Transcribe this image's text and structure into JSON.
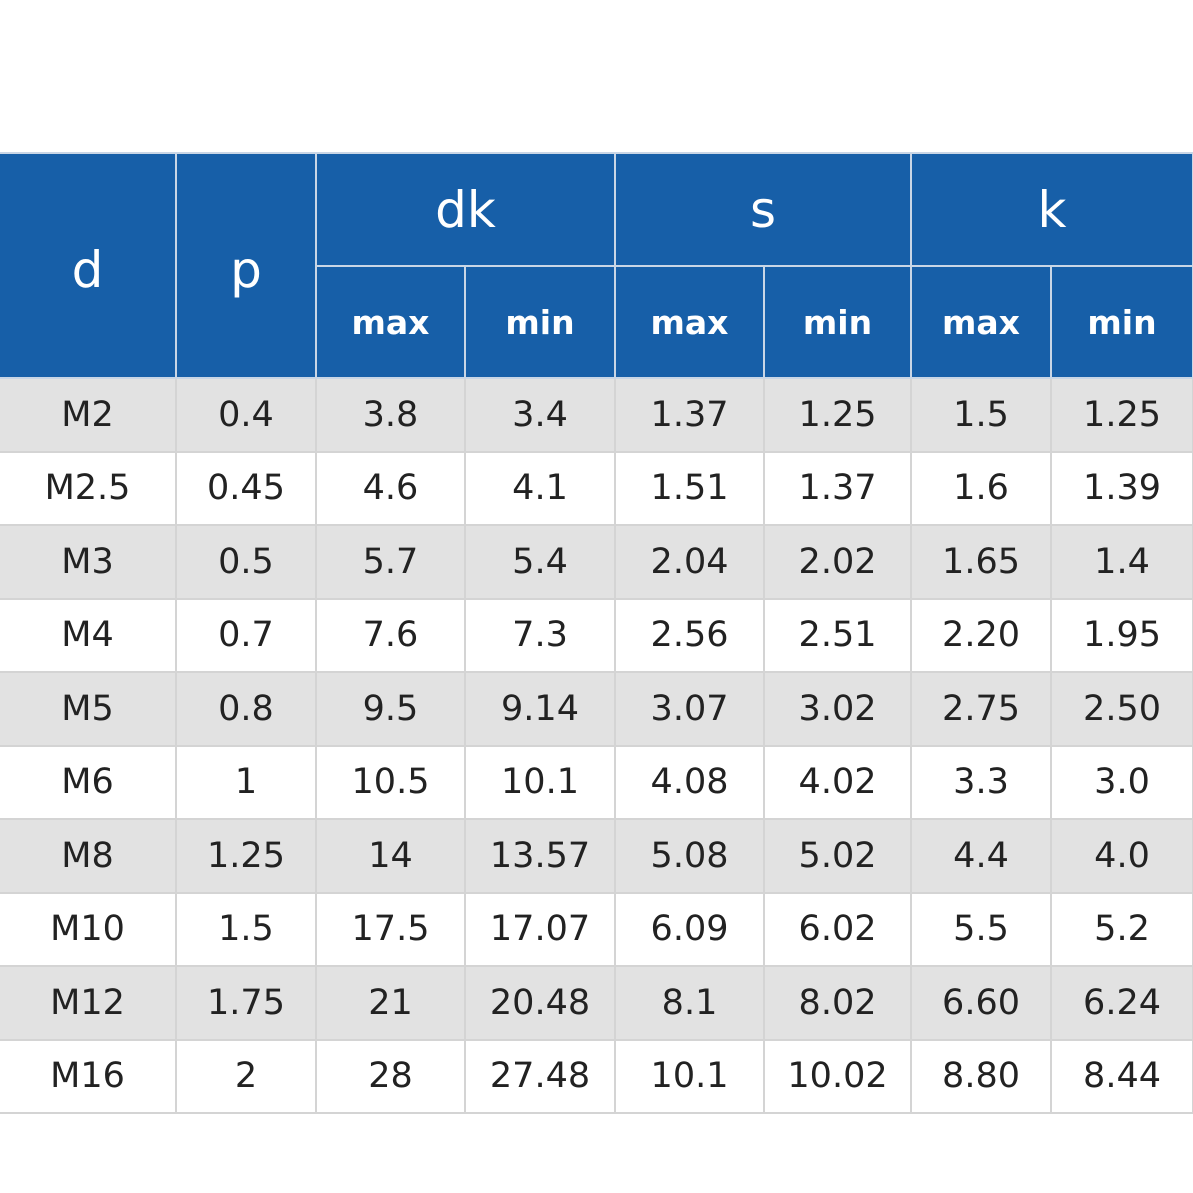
{
  "table": {
    "headers": {
      "d": "d",
      "p": "p",
      "dk": "dk",
      "s": "s",
      "k": "k",
      "max": "max",
      "min": "min"
    },
    "rows": [
      [
        "M2",
        "0.4",
        "3.8",
        "3.4",
        "1.37",
        "1.25",
        "1.5",
        "1.25"
      ],
      [
        "M2.5",
        "0.45",
        "4.6",
        "4.1",
        "1.51",
        "1.37",
        "1.6",
        "1.39"
      ],
      [
        "M3",
        "0.5",
        "5.7",
        "5.4",
        "2.04",
        "2.02",
        "1.65",
        "1.4"
      ],
      [
        "M4",
        "0.7",
        "7.6",
        "7.3",
        "2.56",
        "2.51",
        "2.20",
        "1.95"
      ],
      [
        "M5",
        "0.8",
        "9.5",
        "9.14",
        "3.07",
        "3.02",
        "2.75",
        "2.50"
      ],
      [
        "M6",
        "1",
        "10.5",
        "10.1",
        "4.08",
        "4.02",
        "3.3",
        "3.0"
      ],
      [
        "M8",
        "1.25",
        "14",
        "13.57",
        "5.08",
        "5.02",
        "4.4",
        "4.0"
      ],
      [
        "M10",
        "1.5",
        "17.5",
        "17.07",
        "6.09",
        "6.02",
        "5.5",
        "5.2"
      ],
      [
        "M12",
        "1.75",
        "21",
        "20.48",
        "8.1",
        "8.02",
        "6.60",
        "6.24"
      ],
      [
        "M16",
        "2",
        "28",
        "27.48",
        "10.1",
        "10.02",
        "8.80",
        "8.44"
      ]
    ]
  },
  "colors": {
    "header_bg": "#175fa8",
    "header_text": "#ffffff",
    "row_alt_bg": "#e2e2e2",
    "row_bg": "#ffffff"
  }
}
